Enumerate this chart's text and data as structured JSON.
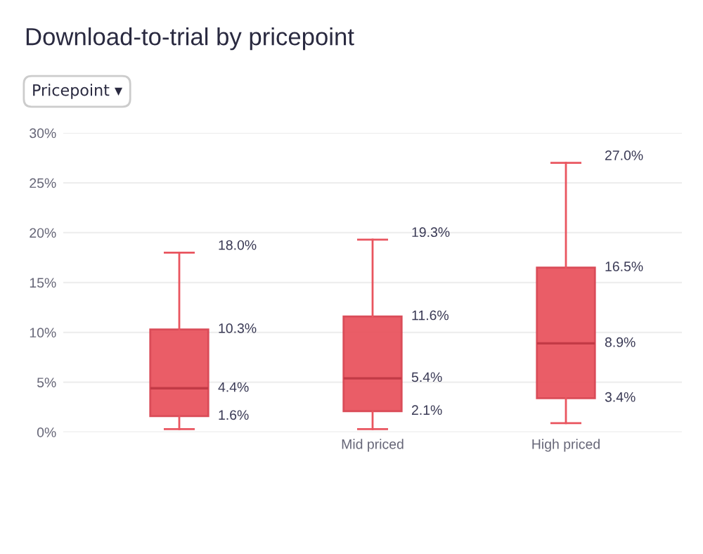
{
  "chart_data": {
    "type": "box",
    "title": "Download-to-trial by pricepoint",
    "annotations": [
      "Pricepoint ▾"
    ],
    "categories": [
      null,
      "Mid priced",
      "High priced"
    ],
    "boxes": [
      {
        "low": 0.3,
        "q1": 1.6,
        "median": 4.4,
        "q3": 10.3,
        "high": 18.0
      },
      {
        "low": 0.3,
        "q1": 2.1,
        "median": 5.4,
        "q3": 11.6,
        "high": 19.3
      },
      {
        "low": 0.9,
        "q1": 3.4,
        "median": 8.9,
        "q3": 16.5,
        "high": 27.0
      }
    ],
    "color": "#e9555f",
    "ylim": [
      0,
      30
    ],
    "yticks": [
      {
        "value": 0,
        "label": "0%"
      },
      {
        "value": 5,
        "label": "5%"
      },
      {
        "value": 10,
        "label": "10%"
      },
      {
        "value": 15,
        "label": "15%"
      },
      {
        "value": 20,
        "label": "20%"
      },
      {
        "value": 25,
        "label": "25%"
      },
      {
        "value": 30,
        "label": "30%"
      }
    ],
    "grid": "y",
    "value_labels": [
      [
        "18.0%",
        "10.3%",
        "4.4%",
        "1.6%"
      ],
      [
        "19.3%",
        "11.6%",
        "5.4%",
        "2.1%"
      ],
      [
        "27.0%",
        "16.5%",
        "8.9%",
        "3.4%"
      ]
    ]
  }
}
